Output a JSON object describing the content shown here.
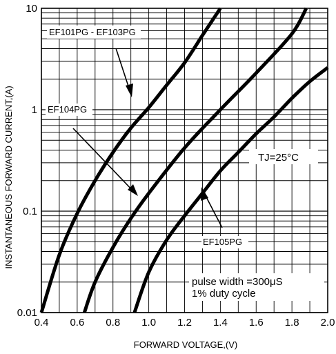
{
  "chart_data": {
    "type": "line",
    "title": "",
    "xlabel": "FORWARD VOLTAGE,(V)",
    "ylabel": "INSTANTANEOUS FORWARD CURRENT,(A)",
    "xlim": [
      0.4,
      2.0
    ],
    "ylim": [
      0.01,
      10
    ],
    "y_scale": "log",
    "grid": true,
    "x_ticks": [
      "0.4",
      "0.6",
      "0.8",
      "1.0",
      "1.2",
      "1.4",
      "1.6",
      "1.8",
      "2.0"
    ],
    "y_ticks": [
      "0.01",
      "0.1",
      "1",
      "10"
    ],
    "series": [
      {
        "name": "EF101PG - EF103PG",
        "x": [
          0.4,
          0.5,
          0.6,
          0.7,
          0.8,
          0.9,
          1.0,
          1.1,
          1.2,
          1.3,
          1.4
        ],
        "y": [
          0.01,
          0.037,
          0.095,
          0.2,
          0.38,
          0.66,
          1.05,
          1.75,
          2.9,
          5.4,
          10
        ]
      },
      {
        "name": "EF104PG",
        "x": [
          0.64,
          0.7,
          0.8,
          0.9,
          1.0,
          1.2,
          1.4,
          1.6,
          1.8,
          1.88
        ],
        "y": [
          0.01,
          0.02,
          0.044,
          0.085,
          0.15,
          0.42,
          1.0,
          2.3,
          5.6,
          10
        ]
      },
      {
        "name": "EF105PG",
        "x": [
          0.92,
          1.0,
          1.1,
          1.2,
          1.3,
          1.4,
          1.5,
          1.6,
          1.7,
          1.8,
          1.9,
          2.0
        ],
        "y": [
          0.01,
          0.025,
          0.052,
          0.09,
          0.15,
          0.25,
          0.38,
          0.58,
          0.85,
          1.3,
          1.9,
          2.6
        ]
      }
    ],
    "annotations": {
      "label_101_103": "EF101PG - EF103PG",
      "label_104": "EF104PG",
      "label_105": "EF105PG",
      "temperature": "TJ=25°C",
      "pulse_line1": "pulse width =300μS",
      "pulse_line2": "1% duty cycle"
    }
  }
}
